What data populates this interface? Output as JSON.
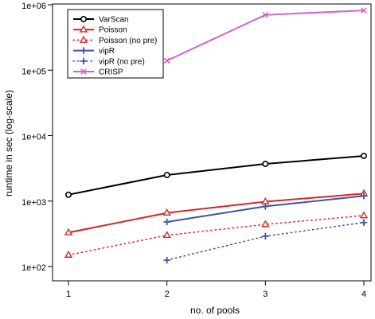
{
  "chart_data": {
    "type": "line",
    "xlabel": "no. of pools",
    "ylabel": "runtime in sec (log-scale)",
    "x_scale": "linear",
    "y_scale": "log",
    "xlim": [
      1,
      4
    ],
    "ylim": [
      100,
      1000000
    ],
    "x_ticks": [
      1,
      2,
      3,
      4
    ],
    "x_tick_labels": [
      "1",
      "2",
      "3",
      "4"
    ],
    "y_ticks": [
      100,
      1000,
      10000,
      100000,
      1000000
    ],
    "y_tick_labels": [
      {
        "base": "1e+02",
        "exp": ""
      },
      {
        "base": "1e+03",
        "exp": ""
      },
      {
        "base": "1e+04",
        "exp": ""
      },
      {
        "base": "1e+05",
        "exp": ""
      },
      {
        "base": "1e+06",
        "exp": ""
      }
    ],
    "grid": false,
    "legend_position": "top-left",
    "series": [
      {
        "name": "VarScan",
        "color": "#000000",
        "dash": "solid",
        "marker": "circle",
        "x": [
          1,
          2,
          3,
          4
        ],
        "y": [
          1250,
          2500,
          3700,
          4900
        ]
      },
      {
        "name": "Poisson",
        "color": "#d62728",
        "dash": "solid",
        "marker": "triangle",
        "x": [
          1,
          2,
          3,
          4
        ],
        "y": [
          330,
          660,
          980,
          1300
        ]
      },
      {
        "name": "Poisson (no pre)",
        "color": "#d62728",
        "dash": "dotted",
        "marker": "triangle",
        "x": [
          1,
          2,
          3,
          4
        ],
        "y": [
          150,
          300,
          440,
          600
        ]
      },
      {
        "name": "vipR",
        "color": "#3a56a5",
        "dash": "solid",
        "marker": "plus",
        "x": [
          2,
          3,
          4
        ],
        "y": [
          480,
          830,
          1200
        ]
      },
      {
        "name": "vipR (no pre)",
        "color": "#3a56a5",
        "dash": "dotted",
        "marker": "plus",
        "x": [
          2,
          3,
          4
        ],
        "y": [
          125,
          290,
          470
        ]
      },
      {
        "name": "CRISP",
        "color": "#cc66cc",
        "dash": "solid",
        "marker": "cross",
        "x": [
          2,
          3,
          4
        ],
        "y": [
          140000,
          700000,
          820000
        ]
      }
    ]
  }
}
